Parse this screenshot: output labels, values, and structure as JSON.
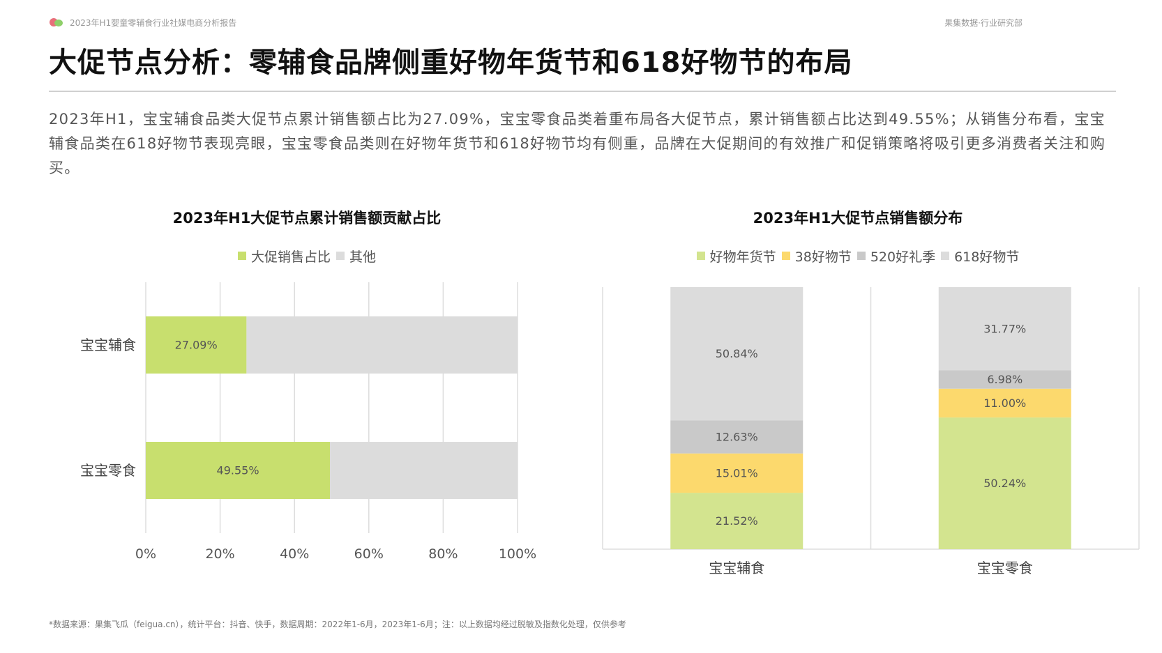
{
  "header": {
    "report_tag": "2023年H1婴童零辅食行业社媒电商分析报告",
    "org_tag": "果集数据·行业研究部",
    "title": "大促节点分析：零辅食品牌侧重好物年货节和618好物节的布局"
  },
  "summary": "2023年H1，宝宝辅食品类大促节点累计销售额占比为27.09%，宝宝零食品类着重布局各大促节点，累计销售额占比达到49.55%；从销售分布看，宝宝辅食品类在618好物节表现亮眼，宝宝零食品类则在好物年货节和618好物节均有侧重，品牌在大促期间的有效推广和促销策略将吸引更多消费者关注和购买。",
  "chart_data": [
    {
      "type": "bar",
      "orientation": "horizontal",
      "stacked": true,
      "title": "2023年H1大促节点累计销售额贡献占比",
      "categories": [
        "宝宝辅食",
        "宝宝零食"
      ],
      "series": [
        {
          "name": "大促销售占比",
          "values": [
            27.09,
            49.55
          ],
          "color": "#c8df6e"
        },
        {
          "name": "其他",
          "values": [
            72.91,
            50.45
          ],
          "color": "#dcdcdc"
        }
      ],
      "data_labels": [
        "27.09%",
        "49.55%"
      ],
      "xlim": [
        0,
        100
      ],
      "xticks": [
        "0%",
        "20%",
        "40%",
        "60%",
        "80%",
        "100%"
      ],
      "grid": true,
      "legend": "top-center"
    },
    {
      "type": "bar",
      "orientation": "vertical",
      "stacked": true,
      "title": "2023年H1大促节点销售额分布",
      "categories": [
        "宝宝辅食",
        "宝宝零食"
      ],
      "series": [
        {
          "name": "好物年货节",
          "values": [
            21.52,
            50.24
          ],
          "labels": [
            "21.52%",
            "50.24%"
          ],
          "color": "#d3e48f"
        },
        {
          "name": "38好物节",
          "values": [
            15.01,
            11.0
          ],
          "labels": [
            "15.01%",
            "11.00%"
          ],
          "color": "#fcd96d"
        },
        {
          "name": "520好礼季",
          "values": [
            12.63,
            6.98
          ],
          "labels": [
            "12.63%",
            "6.98%"
          ],
          "color": "#c9c9c9"
        },
        {
          "name": "618好物节",
          "values": [
            50.84,
            31.77
          ],
          "labels": [
            "50.84%",
            "31.77%"
          ],
          "color": "#dcdcdc"
        }
      ],
      "ylim": [
        0,
        100
      ],
      "legend": "top-center"
    }
  ],
  "footer": {
    "source": "*数据来源：果集飞瓜（feigua.cn），统计平台：抖音、快手，数据周期：2022年1-6月，2023年1-6月；注：以上数据均经过脱敏及指数化处理，仅供参考"
  }
}
